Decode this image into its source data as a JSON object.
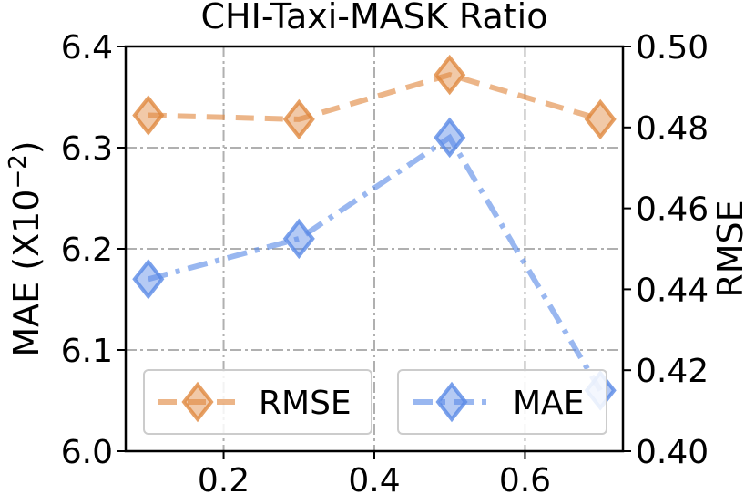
{
  "chart_data": {
    "type": "line",
    "title": "CHI-Taxi-MASK Ratio",
    "x": [
      0.1,
      0.3,
      0.5,
      0.7
    ],
    "xlim": [
      0.07,
      0.73
    ],
    "xticks": [
      0.2,
      0.4,
      0.6
    ],
    "xtick_labels": [
      "0.2",
      "0.4",
      "0.6"
    ],
    "ylabel_left": "MAE (X10",
    "ylabel_left_exponent": "−2",
    "ylabel_left_suffix": ")",
    "ylabel_right": "RMSE",
    "ylim_left": [
      6.0,
      6.4
    ],
    "yticks_left": [
      "6.0",
      "6.1",
      "6.2",
      "6.3",
      "6.4"
    ],
    "ylim_right": [
      0.4,
      0.5
    ],
    "yticks_right": [
      "0.40",
      "0.42",
      "0.44",
      "0.46",
      "0.48",
      "0.50"
    ],
    "grid": true,
    "series": [
      {
        "name": "RMSE",
        "axis": "right",
        "values": [
          0.483,
          0.482,
          0.493,
          0.482
        ],
        "color": "#E0883F",
        "linestyle": "dashed",
        "marker": "diamond"
      },
      {
        "name": "MAE",
        "axis": "left",
        "values": [
          6.17,
          6.21,
          6.31,
          6.06
        ],
        "color": "#5A8AE6",
        "linestyle": "dashdot",
        "marker": "diamond"
      }
    ],
    "legend": [
      "RMSE",
      "MAE"
    ],
    "legend_position": "bottom, two boxes"
  }
}
